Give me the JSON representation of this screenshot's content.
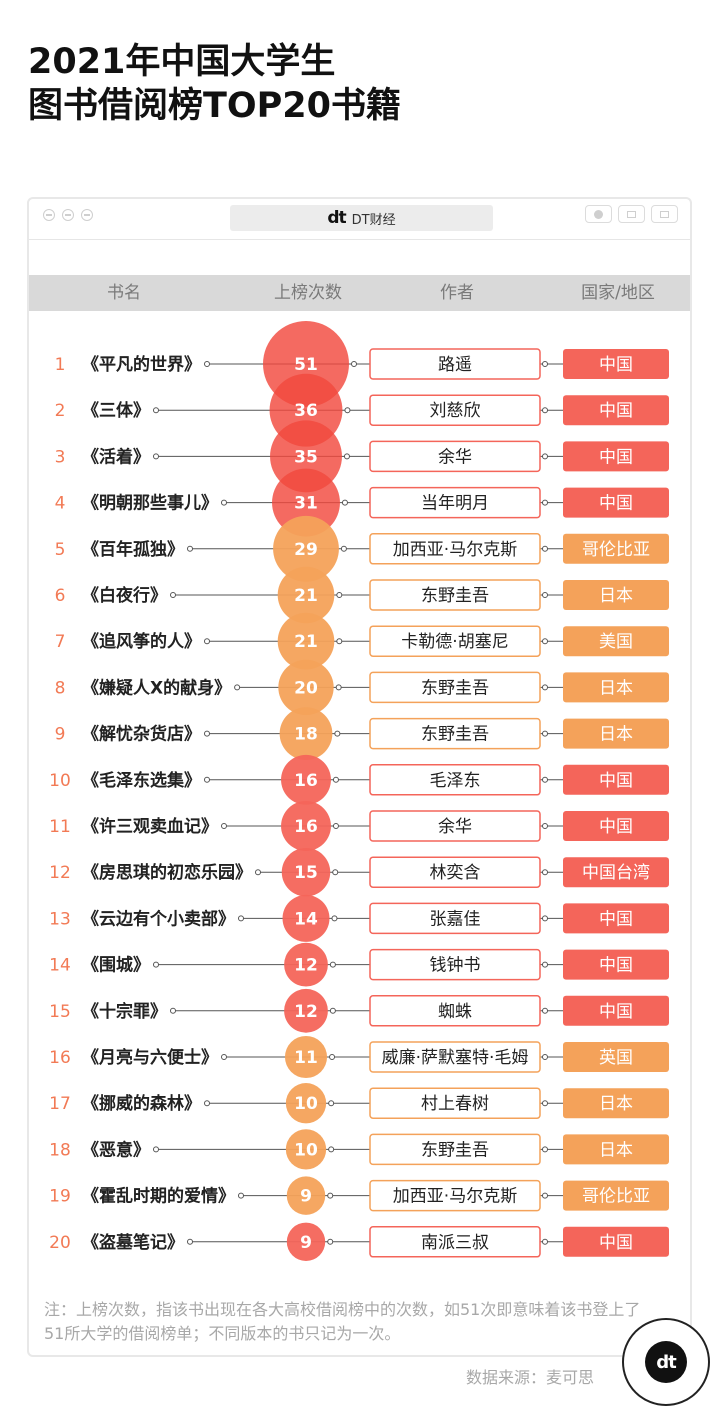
{
  "title": {
    "line1": "2021年中国大学生",
    "line2": "图书借阅榜TOP20书籍"
  },
  "window": {
    "brand_mark": "dt",
    "brand_name": "DT财经"
  },
  "columns": [
    "书名",
    "上榜次数",
    "作者",
    "国家/地区"
  ],
  "colors": {
    "red": "#f4655a",
    "orange": "#f4a25a",
    "bubble_top4": "#f2493e",
    "rank_text": "#f27a55",
    "country_red": "#f4655a",
    "country_orange": "#f4a25a"
  },
  "chart_data": {
    "type": "table",
    "columns": [
      "书名",
      "上榜次数",
      "作者",
      "国家/地区"
    ],
    "rows": [
      {
        "rank": "1",
        "book": "《平凡的世界》",
        "count": 51,
        "author": "路遥",
        "country": "中国"
      },
      {
        "rank": "2",
        "book": "《三体》",
        "count": 36,
        "author": "刘慈欣",
        "country": "中国"
      },
      {
        "rank": "3",
        "book": "《活着》",
        "count": 35,
        "author": "余华",
        "country": "中国"
      },
      {
        "rank": "4",
        "book": "《明朝那些事儿》",
        "count": 31,
        "author": "当年明月",
        "country": "中国"
      },
      {
        "rank": "5",
        "book": "《百年孤独》",
        "count": 29,
        "author": "加西亚·马尔克斯",
        "country": "哥伦比亚"
      },
      {
        "rank": "6",
        "book": "《白夜行》",
        "count": 21,
        "author": "东野圭吾",
        "country": "日本"
      },
      {
        "rank": "7",
        "book": "《追风筝的人》",
        "count": 21,
        "author": "卡勒德·胡塞尼",
        "country": "美国"
      },
      {
        "rank": "8",
        "book": "《嫌疑人X的献身》",
        "count": 20,
        "author": "东野圭吾",
        "country": "日本"
      },
      {
        "rank": "9",
        "book": "《解忧杂货店》",
        "count": 18,
        "author": "东野圭吾",
        "country": "日本"
      },
      {
        "rank": "10",
        "book": "《毛泽东选集》",
        "count": 16,
        "author": "毛泽东",
        "country": "中国"
      },
      {
        "rank": "11",
        "book": "《许三观卖血记》",
        "count": 16,
        "author": "余华",
        "country": "中国"
      },
      {
        "rank": "12",
        "book": "《房思琪的初恋乐园》",
        "count": 15,
        "author": "林奕含",
        "country": "中国台湾"
      },
      {
        "rank": "13",
        "book": "《云边有个小卖部》",
        "count": 14,
        "author": "张嘉佳",
        "country": "中国"
      },
      {
        "rank": "14",
        "book": "《围城》",
        "count": 12,
        "author": "钱钟书",
        "country": "中国"
      },
      {
        "rank": "15",
        "book": "《十宗罪》",
        "count": 12,
        "author": "蜘蛛",
        "country": "中国"
      },
      {
        "rank": "16",
        "book": "《月亮与六便士》",
        "count": 11,
        "author": "威廉·萨默塞特·毛姆",
        "country": "英国"
      },
      {
        "rank": "17",
        "book": "《挪威的森林》",
        "count": 10,
        "author": "村上春树",
        "country": "日本"
      },
      {
        "rank": "18",
        "book": "《恶意》",
        "count": 10,
        "author": "东野圭吾",
        "country": "日本"
      },
      {
        "rank": "19",
        "book": "《霍乱时期的爱情》",
        "count": 9,
        "author": "加西亚·马尔克斯",
        "country": "哥伦比亚"
      },
      {
        "rank": "20",
        "book": "《盗墓笔记》",
        "count": 9,
        "author": "南派三叔",
        "country": "中国"
      }
    ]
  },
  "note": "注：上榜次数，指该书出现在各大高校借阅榜中的次数，如51次即意味着该书登上了51所大学的借阅榜单；不同版本的书只记为一次。",
  "source": "数据来源：麦可思",
  "badge": "dt"
}
